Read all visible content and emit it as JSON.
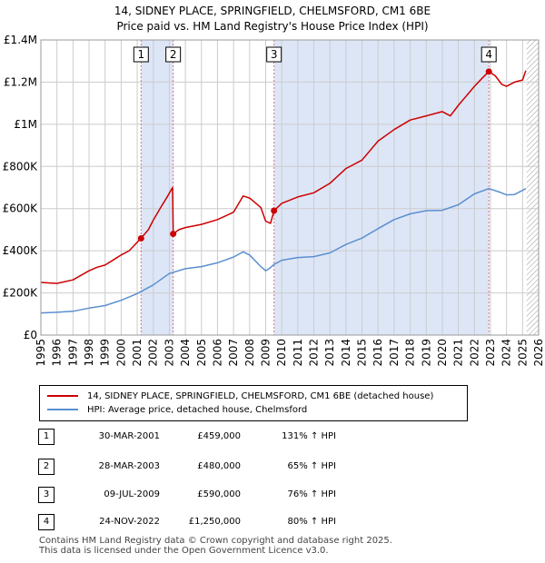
{
  "title_line1": "14, SIDNEY PLACE, SPRINGFIELD, CHELMSFORD, CM1 6BE",
  "title_line2": "Price paid vs. HM Land Registry's House Price Index (HPI)",
  "chart_data": {
    "type": "line",
    "xlim": [
      1995,
      2026
    ],
    "ylim": [
      0,
      1400000
    ],
    "x_ticks": [
      1995,
      1996,
      1997,
      1998,
      1999,
      2000,
      2001,
      2002,
      2003,
      2004,
      2005,
      2006,
      2007,
      2008,
      2009,
      2010,
      2011,
      2012,
      2013,
      2014,
      2015,
      2016,
      2017,
      2018,
      2019,
      2020,
      2021,
      2022,
      2023,
      2024,
      2025,
      2026
    ],
    "y_ticks": [
      {
        "value": 0,
        "label": "£0"
      },
      {
        "value": 200000,
        "label": "£200K"
      },
      {
        "value": 400000,
        "label": "£400K"
      },
      {
        "value": 600000,
        "label": "£600K"
      },
      {
        "value": 800000,
        "label": "£800K"
      },
      {
        "value": 1000000,
        "label": "£1M"
      },
      {
        "value": 1200000,
        "label": "£1.2M"
      },
      {
        "value": 1400000,
        "label": "£1.4M"
      }
    ],
    "colors": {
      "property": "#cc0000",
      "hpi": "#5b8fd0",
      "band": "#dde6f7",
      "grid": "#cccccc",
      "vline": "#e07070"
    },
    "shaded_periods": [
      [
        2001.24,
        2003.24
      ],
      [
        2009.52,
        2022.9
      ]
    ],
    "future_hatch_start": 2025.25,
    "series": [
      {
        "name": "14, SIDNEY PLACE, SPRINGFIELD, CHELMSFORD, CM1 6BE (detached house)",
        "color": "#cc0000",
        "x": [
          1995.0,
          1996.0,
          1997.0,
          1998.0,
          1998.5,
          1999.0,
          2000.0,
          2000.5,
          2001.24,
          2001.7,
          2002.0,
          2002.5,
          2002.9,
          2003.2,
          2003.24,
          2003.6,
          2004.0,
          2005.0,
          2006.0,
          2007.0,
          2007.6,
          2008.0,
          2008.7,
          2009.0,
          2009.3,
          2009.52,
          2010.0,
          2011.0,
          2012.0,
          2013.0,
          2014.0,
          2015.0,
          2016.0,
          2017.0,
          2018.0,
          2019.0,
          2020.0,
          2020.5,
          2021.0,
          2022.0,
          2022.5,
          2022.9,
          2023.3,
          2023.7,
          2024.0,
          2024.5,
          2025.0,
          2025.2
        ],
        "y": [
          250000,
          245000,
          262000,
          305000,
          322000,
          332000,
          380000,
          400000,
          459000,
          500000,
          545000,
          610000,
          660000,
          700000,
          480000,
          500000,
          510000,
          525000,
          548000,
          583000,
          660000,
          650000,
          605000,
          540000,
          530000,
          590000,
          625000,
          655000,
          675000,
          720000,
          790000,
          830000,
          920000,
          975000,
          1020000,
          1040000,
          1060000,
          1040000,
          1090000,
          1180000,
          1220000,
          1250000,
          1230000,
          1190000,
          1180000,
          1200000,
          1210000,
          1255000
        ]
      },
      {
        "name": "HPI: Average price, detached house, Chelmsford",
        "color": "#5b8fd0",
        "x": [
          1995.0,
          1996.0,
          1997.0,
          1998.0,
          1999.0,
          2000.0,
          2001.0,
          2002.0,
          2003.0,
          2004.0,
          2005.0,
          2006.0,
          2007.0,
          2007.6,
          2008.0,
          2008.7,
          2009.0,
          2009.3,
          2009.52,
          2010.0,
          2011.0,
          2012.0,
          2013.0,
          2014.0,
          2015.0,
          2016.0,
          2017.0,
          2018.0,
          2019.0,
          2020.0,
          2021.0,
          2022.0,
          2022.9,
          2023.5,
          2024.0,
          2024.5,
          2025.2
        ],
        "y": [
          105000,
          108000,
          113000,
          128000,
          140000,
          165000,
          197000,
          238000,
          292000,
          315000,
          325000,
          343000,
          370000,
          395000,
          380000,
          325000,
          305000,
          320000,
          335000,
          355000,
          368000,
          372000,
          390000,
          430000,
          460000,
          505000,
          548000,
          575000,
          590000,
          592000,
          618000,
          670000,
          695000,
          680000,
          665000,
          667000,
          695000
        ]
      }
    ],
    "sale_markers": [
      {
        "num": "1",
        "x": 2001.24,
        "y": 459000
      },
      {
        "num": "2",
        "x": 2003.24,
        "y": 480000
      },
      {
        "num": "3",
        "x": 2009.52,
        "y": 590000
      },
      {
        "num": "4",
        "x": 2022.9,
        "y": 1250000
      }
    ]
  },
  "legend": {
    "property_label": "14, SIDNEY PLACE, SPRINGFIELD, CHELMSFORD, CM1 6BE (detached house)",
    "hpi_label": "HPI: Average price, detached house, Chelmsford"
  },
  "sales": [
    {
      "num": "1",
      "date": "30-MAR-2001",
      "price": "£459,000",
      "hpi": "131% ↑ HPI"
    },
    {
      "num": "2",
      "date": "28-MAR-2003",
      "price": "£480,000",
      "hpi": "65% ↑ HPI"
    },
    {
      "num": "3",
      "date": "09-JUL-2009",
      "price": "£590,000",
      "hpi": "76% ↑ HPI"
    },
    {
      "num": "4",
      "date": "24-NOV-2022",
      "price": "£1,250,000",
      "hpi": "80% ↑ HPI"
    }
  ],
  "footer_line1": "Contains HM Land Registry data © Crown copyright and database right 2025.",
  "footer_line2": "This data is licensed under the Open Government Licence v3.0."
}
